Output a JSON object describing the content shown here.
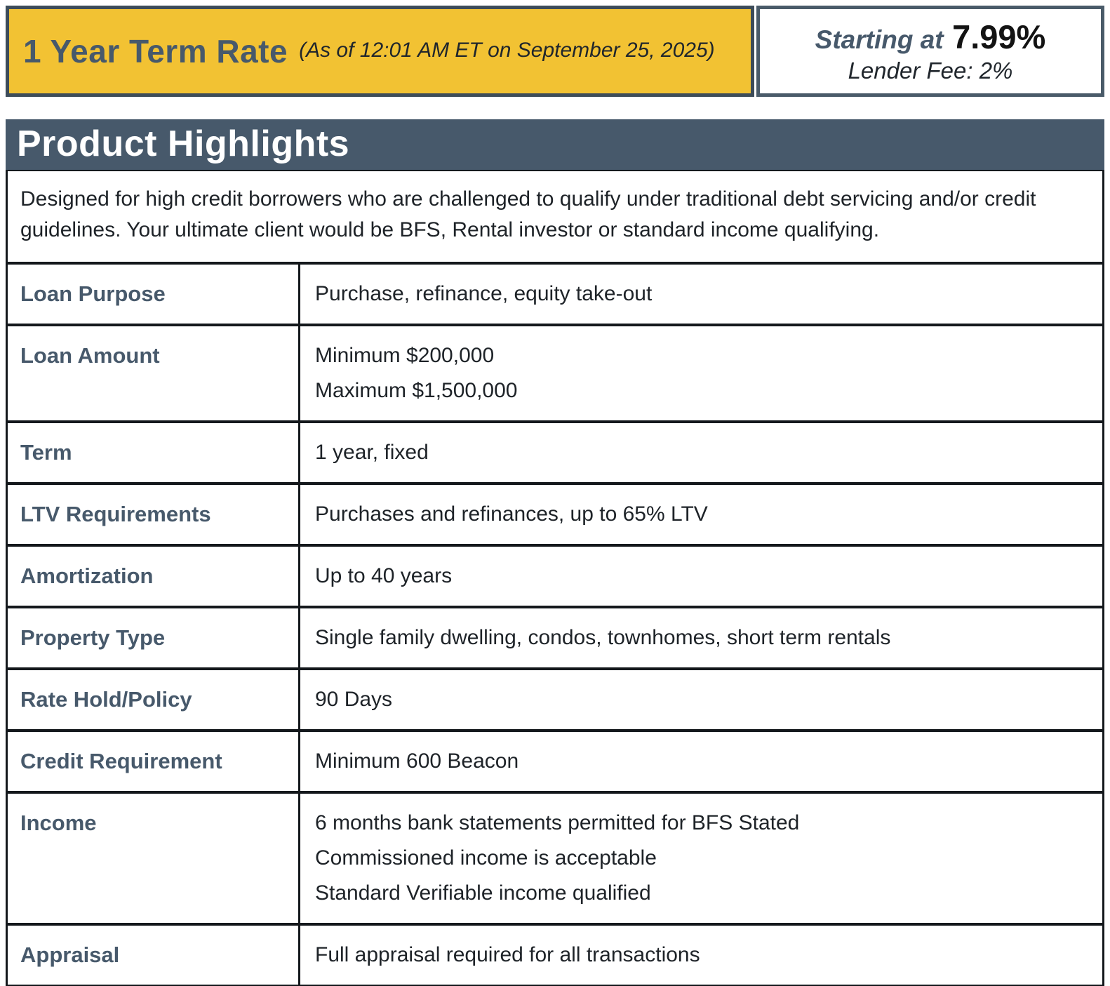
{
  "banner": {
    "title": "1 Year Term Rate",
    "as_of": "(As of 12:01 AM ET on September 25, 2025)",
    "starting_at_label": "Starting at",
    "rate": "7.99%",
    "lender_fee": "Lender Fee: 2%"
  },
  "section": {
    "title": "Product Highlights",
    "intro": "Designed for high credit borrowers who are challenged to qualify under traditional debt servicing and/or credit guidelines. Your ultimate client would be BFS, Rental investor or standard income qualifying."
  },
  "table": {
    "rows": [
      {
        "label": "Loan Purpose",
        "lines": [
          "Purchase, refinance, equity take-out"
        ]
      },
      {
        "label": "Loan Amount",
        "lines": [
          "Minimum $200,000",
          "Maximum $1,500,000"
        ]
      },
      {
        "label": "Term",
        "lines": [
          "1 year, fixed"
        ]
      },
      {
        "label": "LTV Requirements",
        "lines": [
          "Purchases and refinances, up to 65% LTV"
        ]
      },
      {
        "label": "Amortization",
        "lines": [
          "Up to 40 years"
        ]
      },
      {
        "label": "Property Type",
        "lines": [
          "Single family dwelling, condos, townhomes, short term rentals"
        ]
      },
      {
        "label": "Rate Hold/Policy",
        "lines": [
          "90 Days"
        ]
      },
      {
        "label": "Credit Requirement",
        "lines": [
          "Minimum 600 Beacon"
        ]
      },
      {
        "label": "Income",
        "lines": [
          "6 months bank statements permitted for BFS Stated",
          "Commissioned income is acceptable",
          "Standard Verifiable income qualified"
        ]
      },
      {
        "label": "Appraisal",
        "lines": [
          "Full appraisal required for all transactions"
        ]
      }
    ]
  },
  "colors": {
    "accent_yellow": "#F2C233",
    "slate_blue": "#47596B",
    "table_border": "#14181C",
    "body_text": "#1E2328"
  }
}
